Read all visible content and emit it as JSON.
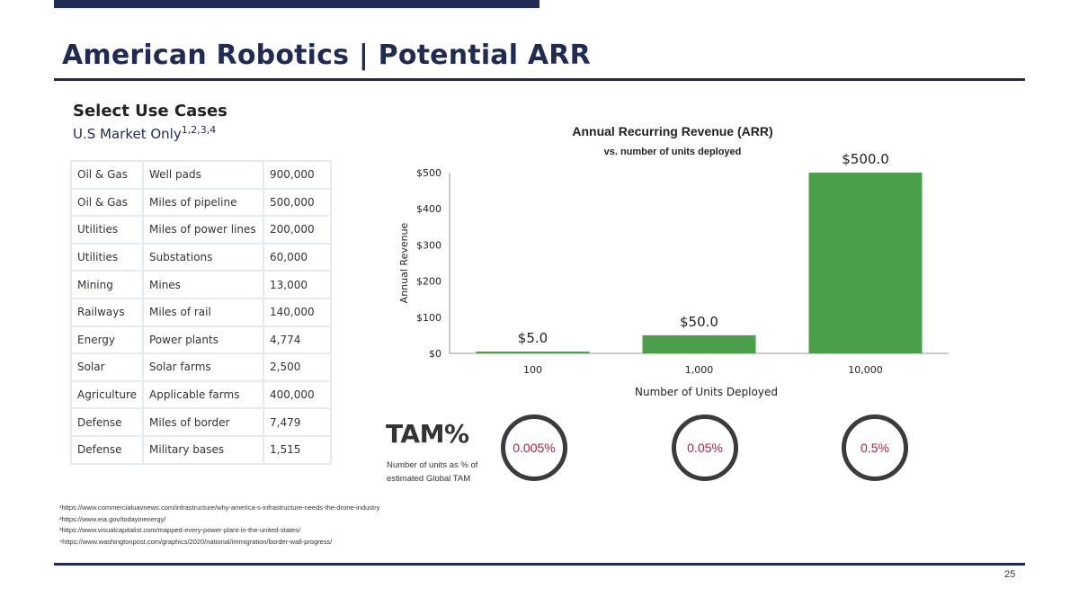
{
  "slide": {
    "title": "American Robotics | Potential ARR",
    "page_number": "25"
  },
  "use_cases": {
    "heading": "Select Use Cases",
    "subheading": "U.S Market Only",
    "subheading_refs": "1,2,3,4",
    "rows": [
      [
        "Oil & Gas",
        "Well pads",
        "900,000"
      ],
      [
        "Oil & Gas",
        "Miles of pipeline",
        "500,000"
      ],
      [
        "Utilities",
        "Miles of power lines",
        "200,000"
      ],
      [
        "Utilities",
        "Substations",
        "60,000"
      ],
      [
        "Mining",
        "Mines",
        "13,000"
      ],
      [
        "Railways",
        "Miles of rail",
        "140,000"
      ],
      [
        "Energy",
        "Power plants",
        "4,774"
      ],
      [
        "Solar",
        "Solar farms",
        "2,500"
      ],
      [
        "Agriculture",
        "Applicable farms",
        "400,000"
      ],
      [
        "Defense",
        "Miles of border",
        "7,479"
      ],
      [
        "Defense",
        "Military bases",
        "1,515"
      ]
    ]
  },
  "chart_data": {
    "type": "bar",
    "title": "Annual Recurring Revenue (ARR)",
    "subtitle": "vs. number of units deployed",
    "xlabel": "Number of Units Deployed",
    "ylabel": "Annual Revenue",
    "categories": [
      "100",
      "1,000",
      "10,000"
    ],
    "values": [
      5.0,
      50.0,
      500.0
    ],
    "data_labels": [
      "$5.0",
      "$50.0",
      "$500.0"
    ],
    "yticks": [
      "$0",
      "$100",
      "$200",
      "$300",
      "$400",
      "$500"
    ],
    "ylim": [
      0,
      500
    ],
    "bar_color": "#4aa04a",
    "grid": false
  },
  "tam": {
    "title": "TAM%",
    "description": "Number of units as % of estimated Global TAM",
    "values": [
      "0.005%",
      "0.05%",
      "0.5%"
    ],
    "value_color": "#a3253a"
  },
  "footnotes": [
    "¹https://www.commercialuavnews.com/infrastructure/why-america-s-infrastructure-needs-the-drone-industry",
    "²https://www.eia.gov/todayinenergy/",
    "³https://www.visualcapitalist.com/mapped-every-power-plant-in-the-united-states/",
    "⁴https://www.washingtonpost.com/graphics/2020/national/immigration/border-wall-progress/"
  ],
  "colors": {
    "navy": "#1f2a55"
  }
}
